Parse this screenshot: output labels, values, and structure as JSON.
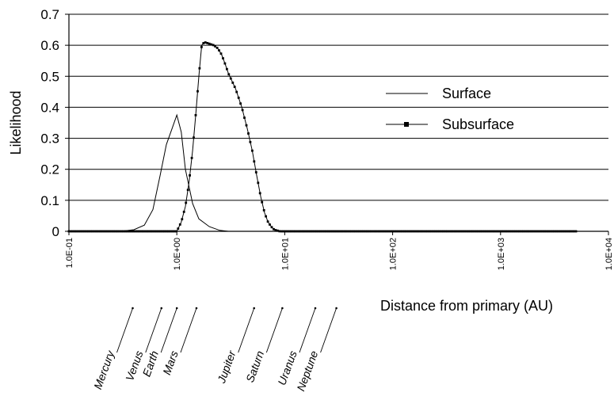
{
  "chart_data": {
    "type": "line",
    "xlabel": "Distance from primary (AU)",
    "ylabel": "Likelihood",
    "xscale": "log",
    "xlim": [
      0.1,
      10000
    ],
    "ylim": [
      0,
      0.7
    ],
    "grid": "horizontal",
    "legend_position": "right",
    "yticks": [
      "0",
      "0.1",
      "0.2",
      "0.3",
      "0.4",
      "0.5",
      "0.6",
      "0.7"
    ],
    "xticks": [
      "1.0E-01",
      "1.0E+00",
      "1.0E+01",
      "1.0E+02",
      "1.0E+03",
      "1.0E+04"
    ],
    "series": [
      {
        "name": "Surface",
        "marker": "none",
        "x": [
          0.1,
          0.3,
          0.4,
          0.5,
          0.6,
          0.7,
          0.8,
          0.9,
          1.0,
          1.1,
          1.2,
          1.4,
          1.6,
          2.0,
          2.5,
          3,
          10,
          100,
          1000,
          5000
        ],
        "y": [
          0,
          0,
          0.005,
          0.02,
          0.07,
          0.18,
          0.28,
          0.33,
          0.375,
          0.32,
          0.2,
          0.09,
          0.04,
          0.015,
          0.003,
          0,
          0,
          0,
          0,
          0
        ]
      },
      {
        "name": "Subsurface",
        "marker": "square",
        "x": [
          0.1,
          1.0,
          1.1,
          1.2,
          1.3,
          1.4,
          1.5,
          1.6,
          1.7,
          1.8,
          2.0,
          2.2,
          2.4,
          2.6,
          2.8,
          3.0,
          3.5,
          4.0,
          4.5,
          5.0,
          5.5,
          6.0,
          6.5,
          7.0,
          7.5,
          8.0,
          9.0,
          10,
          12,
          15,
          20,
          100,
          1000,
          5000
        ],
        "y": [
          0,
          0,
          0.03,
          0.08,
          0.16,
          0.26,
          0.38,
          0.5,
          0.6,
          0.61,
          0.605,
          0.6,
          0.59,
          0.57,
          0.54,
          0.51,
          0.46,
          0.4,
          0.33,
          0.26,
          0.18,
          0.11,
          0.06,
          0.03,
          0.015,
          0.005,
          0,
          0,
          0,
          0,
          0,
          0,
          0,
          0
        ]
      }
    ],
    "planets": [
      {
        "name": "Mercury",
        "au": 0.39
      },
      {
        "name": "Venus",
        "au": 0.72
      },
      {
        "name": "Earth",
        "au": 1.0
      },
      {
        "name": "Mars",
        "au": 1.52
      },
      {
        "name": "Jupiter",
        "au": 5.2
      },
      {
        "name": "Saturn",
        "au": 9.5
      },
      {
        "name": "Uranus",
        "au": 19.2
      },
      {
        "name": "Neptune",
        "au": 30.1
      }
    ]
  }
}
